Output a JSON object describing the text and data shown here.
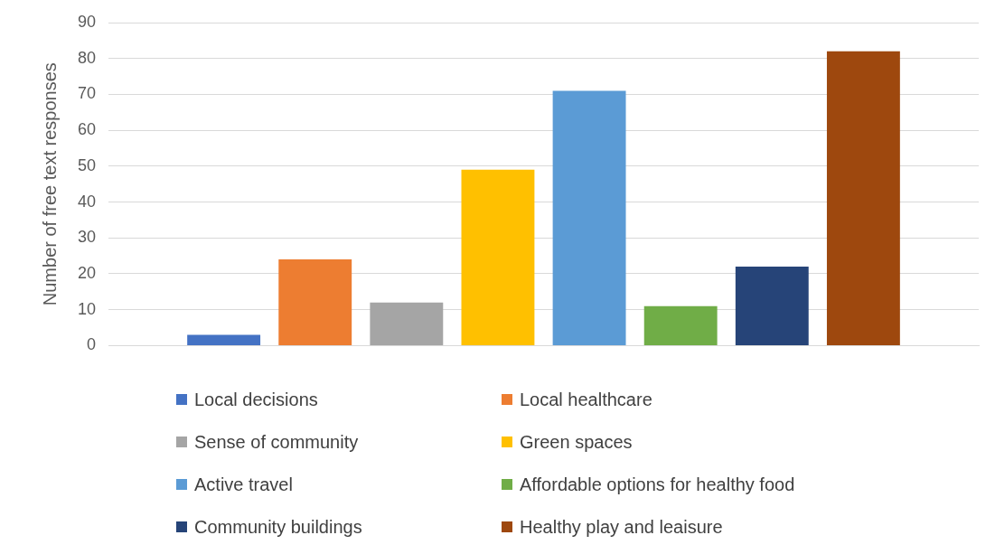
{
  "chart_data": {
    "type": "bar",
    "ylabel": "Number of free text responses",
    "categories": [
      null
    ],
    "series": [
      {
        "name": "Local decisions",
        "color": "#4472c4",
        "values": [
          3
        ]
      },
      {
        "name": "Local healthcare",
        "color": "#ed7d31",
        "values": [
          24
        ]
      },
      {
        "name": "Sense of community",
        "color": "#a5a5a5",
        "values": [
          12
        ]
      },
      {
        "name": "Green spaces",
        "color": "#ffc000",
        "values": [
          49
        ]
      },
      {
        "name": "Active travel",
        "color": "#5b9bd5",
        "values": [
          71
        ]
      },
      {
        "name": "Affordable options for healthy food",
        "color": "#70ad47",
        "values": [
          11
        ]
      },
      {
        "name": "Community buildings",
        "color": "#264478",
        "values": [
          22
        ]
      },
      {
        "name": "Healthy play and leaisure",
        "color": "#9e480e",
        "values": [
          82
        ]
      }
    ],
    "ylim": [
      0,
      90
    ],
    "yticks": [
      0,
      10,
      20,
      30,
      40,
      50,
      60,
      70,
      80,
      90
    ],
    "grid": "y",
    "legend": "bottom"
  }
}
